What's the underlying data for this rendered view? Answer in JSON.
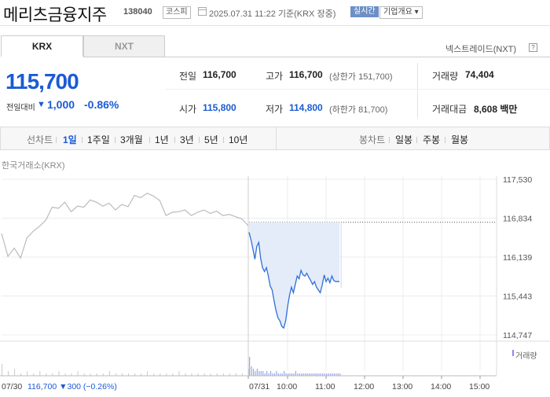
{
  "header": {
    "stock_name": "메리츠금융지주",
    "stock_code": "138040",
    "market": "코스피",
    "date_text": "2025.07.31 11:22 기준(KRX 장중)",
    "realtime_label": "실시간",
    "corp_info_label": "기업개요"
  },
  "tabs": {
    "krx": "KRX",
    "nxt": "NXT",
    "nextrade_link": "넥스트레이드(NXT)",
    "help": "?"
  },
  "price": {
    "current": "115,700",
    "change_label": "전일대비",
    "change_arrow": "▼",
    "change": "1,000",
    "change_pct": "-0.86%"
  },
  "stats": {
    "prev_close_label": "전일",
    "prev_close": "116,700",
    "high_label": "고가",
    "high": "116,700",
    "upper_limit": "(상한가 151,700)",
    "volume_label": "거래량",
    "volume": "74,404",
    "open_label": "시가",
    "open": "115,800",
    "low_label": "저가",
    "low": "114,800",
    "lower_limit": "(하한가 81,700)",
    "amount_label": "거래대금",
    "amount": "8,608 백만"
  },
  "period_bar": {
    "line_chart_label": "선차트",
    "periods": [
      "1일",
      "1주일",
      "3개월",
      "1년",
      "3년",
      "5년",
      "10년"
    ],
    "selected": "1일",
    "candle_chart_label": "봉차트",
    "candles": [
      "일봉",
      "주봉",
      "월봉"
    ]
  },
  "chart_source_label": "한국거래소(KRX)",
  "volume_legend": "거래량",
  "colors": {
    "up": "#e0302d",
    "down": "#1a5bd6",
    "today_fill": "#e4ecfa",
    "prev_line": "#bbbbbb"
  },
  "chart_data": {
    "type": "line",
    "title": "",
    "ylim": [
      114747,
      117530
    ],
    "y_ticks": [
      "117,530",
      "116,834",
      "116,139",
      "115,443",
      "114,747"
    ],
    "x_ticks": [
      "07/31",
      "10:00",
      "11:00",
      "12:00",
      "13:00",
      "14:00",
      "15:00"
    ],
    "prev_day_label": "07/30",
    "prev_day_close_text": "116,700 ▼300 (−0.26%)",
    "prev_close_ref": 116760,
    "series": [
      {
        "name": "07/30",
        "x_minutes_from_open": [
          0,
          10,
          20,
          30,
          40,
          50,
          60,
          70,
          80,
          90,
          100,
          110,
          120,
          130,
          140,
          150,
          160,
          170,
          180,
          190,
          200,
          210,
          220,
          230,
          240,
          250,
          260,
          270,
          280,
          290,
          300,
          310,
          320,
          330,
          340,
          350,
          360,
          370,
          380,
          390
        ],
        "y": [
          116560,
          116150,
          116300,
          116120,
          116480,
          116600,
          116690,
          116800,
          117030,
          117010,
          117120,
          116950,
          117050,
          117030,
          117160,
          117120,
          117050,
          117100,
          116980,
          117080,
          117040,
          117240,
          117200,
          117280,
          117230,
          117150,
          116880,
          116940,
          116950,
          116980,
          116880,
          116940,
          116980,
          116920,
          116960,
          116880,
          116900,
          116860,
          116820,
          116700
        ]
      },
      {
        "name": "07/31",
        "x_minutes_from_open": [
          0,
          3,
          6,
          9,
          12,
          15,
          18,
          21,
          24,
          27,
          30,
          33,
          36,
          39,
          42,
          45,
          48,
          51,
          54,
          57,
          60,
          63,
          66,
          69,
          72,
          75,
          78,
          81,
          84,
          87,
          90,
          93,
          96,
          99,
          102,
          105,
          108,
          111,
          114,
          117,
          120,
          123,
          126,
          129,
          132,
          135,
          138,
          141
        ],
        "y": [
          116580,
          116450,
          116280,
          116100,
          116330,
          116400,
          116120,
          115950,
          115880,
          115950,
          115800,
          115620,
          115550,
          115350,
          115180,
          115050,
          115000,
          114900,
          114870,
          115000,
          115250,
          115450,
          115600,
          115500,
          115650,
          115800,
          115750,
          115900,
          115820,
          115800,
          115850,
          115780,
          115720,
          115650,
          115700,
          115600,
          115550,
          115500,
          115640,
          115820,
          115700,
          115760,
          115680,
          115800,
          115720,
          115700,
          115700,
          115700
        ]
      }
    ],
    "volume": {
      "prev_day": [
        5,
        2,
        3,
        1,
        2,
        1,
        2,
        1,
        1,
        2,
        1,
        1,
        2,
        1,
        1,
        1,
        1,
        2,
        1,
        1,
        1,
        1,
        1,
        2,
        1,
        1,
        1,
        1,
        2,
        1,
        1,
        1,
        1,
        1,
        1,
        1,
        1,
        1,
        1,
        3
      ],
      "today": [
        8,
        4,
        3,
        2,
        3,
        2,
        2,
        2,
        1,
        2,
        1,
        2,
        1,
        1,
        2,
        1,
        1,
        1,
        2,
        1,
        1,
        1,
        1,
        1,
        2,
        1,
        1,
        1,
        1,
        1,
        1,
        1,
        1,
        1,
        1,
        1,
        1,
        1,
        1,
        1,
        1,
        1,
        1,
        1,
        1,
        1,
        1,
        1
      ]
    }
  }
}
